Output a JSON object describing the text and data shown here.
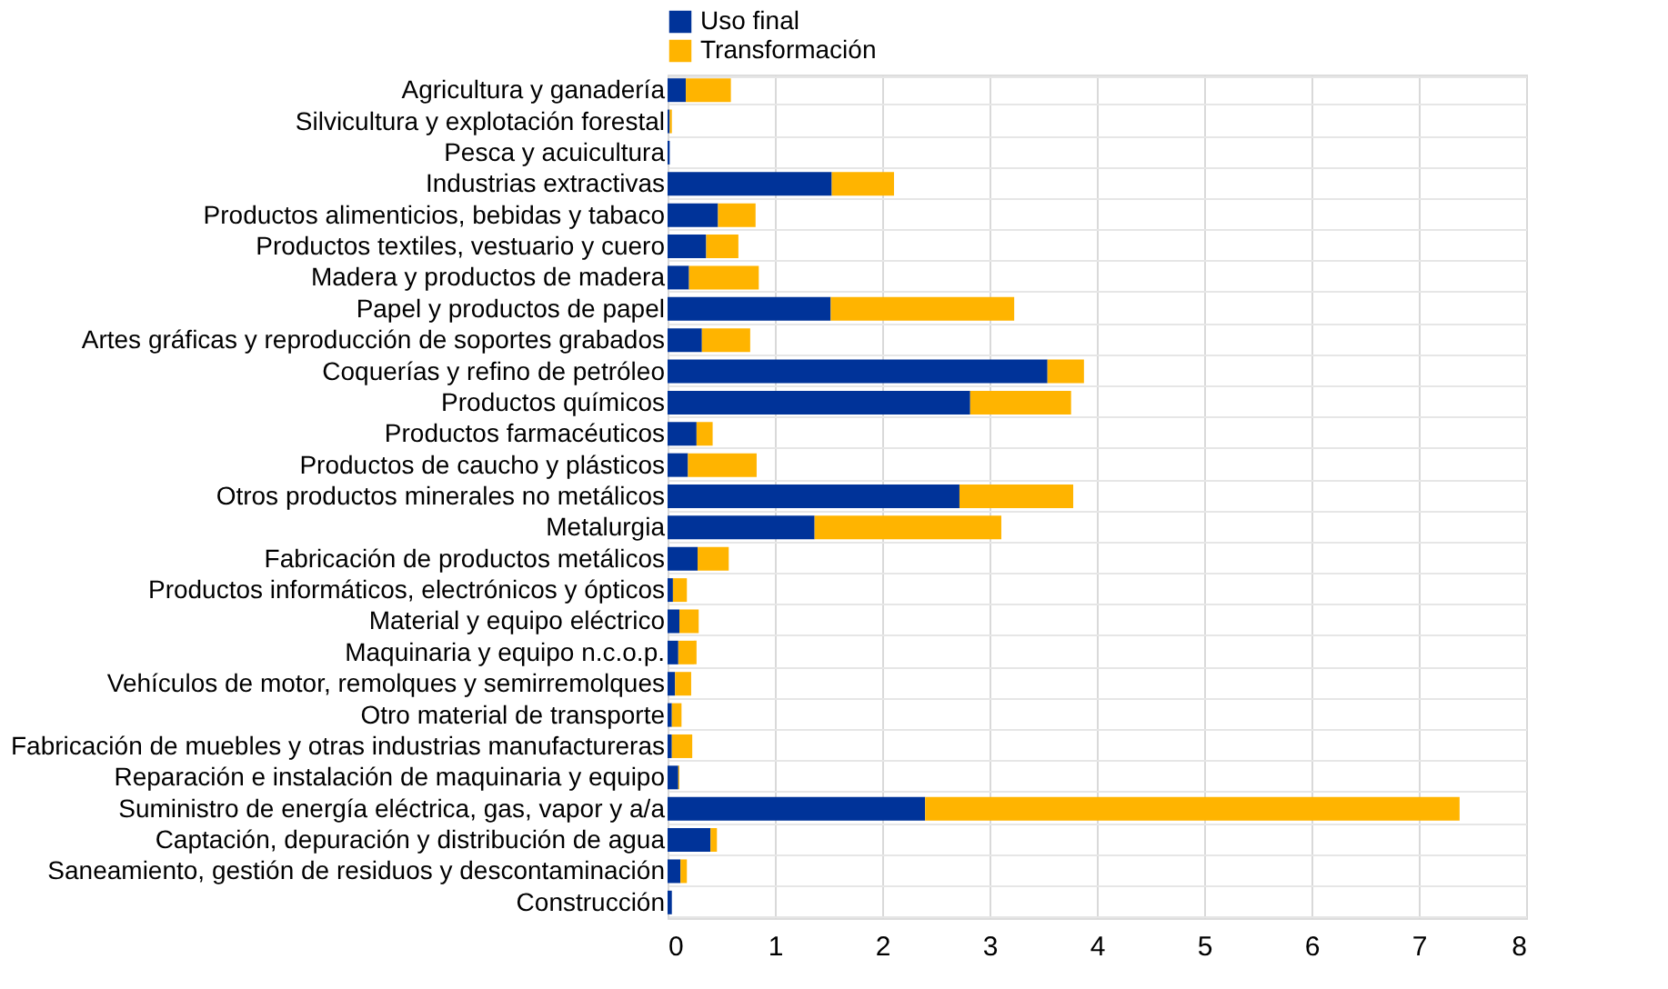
{
  "chart_data": {
    "type": "bar",
    "orientation": "horizontal",
    "stacked": true,
    "categories": [
      "Agricultura y ganadería",
      "Silvicultura y explotación forestal",
      "Pesca y acuicultura",
      "Industrias extractivas",
      "Productos alimenticios, bebidas y tabaco",
      "Productos textiles, vestuario y cuero",
      "Madera y productos de madera",
      "Papel y productos de papel",
      "Artes gráficas y reproducción de soportes grabados",
      "Coquerías y refino de petróleo",
      "Productos químicos",
      "Productos farmacéuticos",
      "Productos de caucho y plásticos",
      "Otros productos minerales no metálicos",
      "Metalurgia",
      "Fabricación de productos metálicos",
      "Productos informáticos, electrónicos y ópticos",
      "Material y equipo eléctrico",
      "Maquinaria y equipo n.c.o.p.",
      "Vehículos de motor, remolques y semirremolques",
      "Otro material de transporte",
      "Fabricación de muebles y otras industrias manufactureras",
      "Reparación e instalación de maquinaria y equipo",
      "Suministro de energía eléctrica, gas, vapor y a/a",
      "Captación, depuración y distribución de agua",
      "Saneamiento, gestión de residuos y descontaminación",
      "Construcción"
    ],
    "series": [
      {
        "name": "Uso final",
        "color": "#003399",
        "values": [
          0.17,
          0.02,
          0.02,
          1.53,
          0.47,
          0.36,
          0.2,
          1.52,
          0.32,
          3.54,
          2.82,
          0.27,
          0.19,
          2.72,
          1.37,
          0.28,
          0.05,
          0.11,
          0.1,
          0.07,
          0.04,
          0.04,
          0.1,
          2.4,
          0.4,
          0.12,
          0.04
        ]
      },
      {
        "name": "Transformación",
        "color": "#ffb400",
        "values": [
          0.42,
          0.02,
          0,
          0.58,
          0.35,
          0.3,
          0.65,
          1.71,
          0.45,
          0.34,
          0.94,
          0.15,
          0.64,
          1.06,
          1.74,
          0.29,
          0.13,
          0.18,
          0.17,
          0.15,
          0.09,
          0.19,
          0.01,
          4.98,
          0.06,
          0.06,
          0
        ]
      }
    ],
    "xlim": [
      0,
      8
    ],
    "xticks": [
      0,
      1,
      2,
      3,
      4,
      5,
      6,
      7,
      8
    ],
    "grid": true,
    "legend": "top"
  }
}
